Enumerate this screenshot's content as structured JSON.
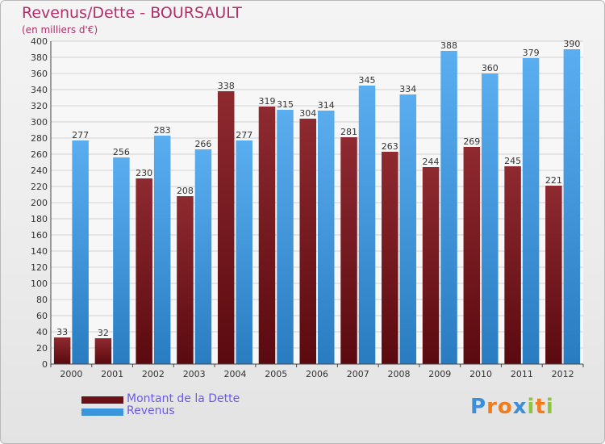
{
  "chart_data": {
    "type": "bar",
    "title": "Revenus/Dette - BOURSAULT",
    "subtitle": "(en milliers d'€)",
    "categories": [
      "2000",
      "2001",
      "2002",
      "2003",
      "2004",
      "2005",
      "2006",
      "2007",
      "2008",
      "2009",
      "2010",
      "2011",
      "2012"
    ],
    "series": [
      {
        "name": "Montant de la Dette",
        "color": "#7a1a1f",
        "values": [
          33,
          32,
          230,
          208,
          338,
          319,
          304,
          281,
          263,
          244,
          269,
          245,
          221
        ]
      },
      {
        "name": "Revenus",
        "color": "#3a95dc",
        "values": [
          277,
          256,
          283,
          266,
          277,
          315,
          314,
          345,
          334,
          388,
          360,
          379,
          390
        ]
      }
    ],
    "ylim": [
      0,
      400
    ],
    "ytick_step": 20,
    "grid": true,
    "legend_position": "bottom-left"
  },
  "logo_text": "Proxiti"
}
